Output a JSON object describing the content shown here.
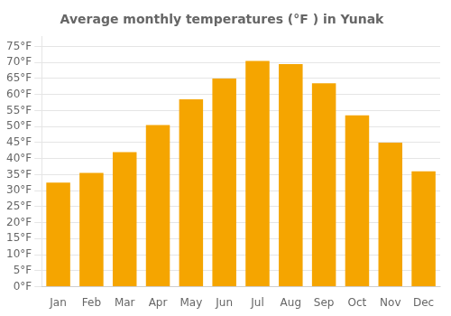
{
  "chart_data": {
    "type": "bar",
    "title": "Average monthly temperatures (°F ) in Yunak",
    "categories": [
      "Jan",
      "Feb",
      "Mar",
      "Apr",
      "May",
      "Jun",
      "Jul",
      "Aug",
      "Sep",
      "Oct",
      "Nov",
      "Dec"
    ],
    "values": [
      32.5,
      35.5,
      42,
      50.5,
      58.5,
      65,
      70.5,
      69.5,
      63.5,
      53.5,
      45,
      36
    ],
    "color": "#F5A500",
    "ylim": [
      0,
      78
    ],
    "yticks": [
      {
        "value": 0,
        "label": "0°F"
      },
      {
        "value": 5,
        "label": "5°F"
      },
      {
        "value": 10,
        "label": "10°F"
      },
      {
        "value": 15,
        "label": "15°F"
      },
      {
        "value": 20,
        "label": "20°F"
      },
      {
        "value": 25,
        "label": "25°F"
      },
      {
        "value": 30,
        "label": "30°F"
      },
      {
        "value": 35,
        "label": "35°F"
      },
      {
        "value": 40,
        "label": "40°F"
      },
      {
        "value": 45,
        "label": "45°F"
      },
      {
        "value": 50,
        "label": "50°F"
      },
      {
        "value": 55,
        "label": "55°F"
      },
      {
        "value": 60,
        "label": "60°F"
      },
      {
        "value": 65,
        "label": "65°F"
      },
      {
        "value": 70,
        "label": "70°F"
      },
      {
        "value": 75,
        "label": "75°F"
      }
    ],
    "grid": true
  }
}
